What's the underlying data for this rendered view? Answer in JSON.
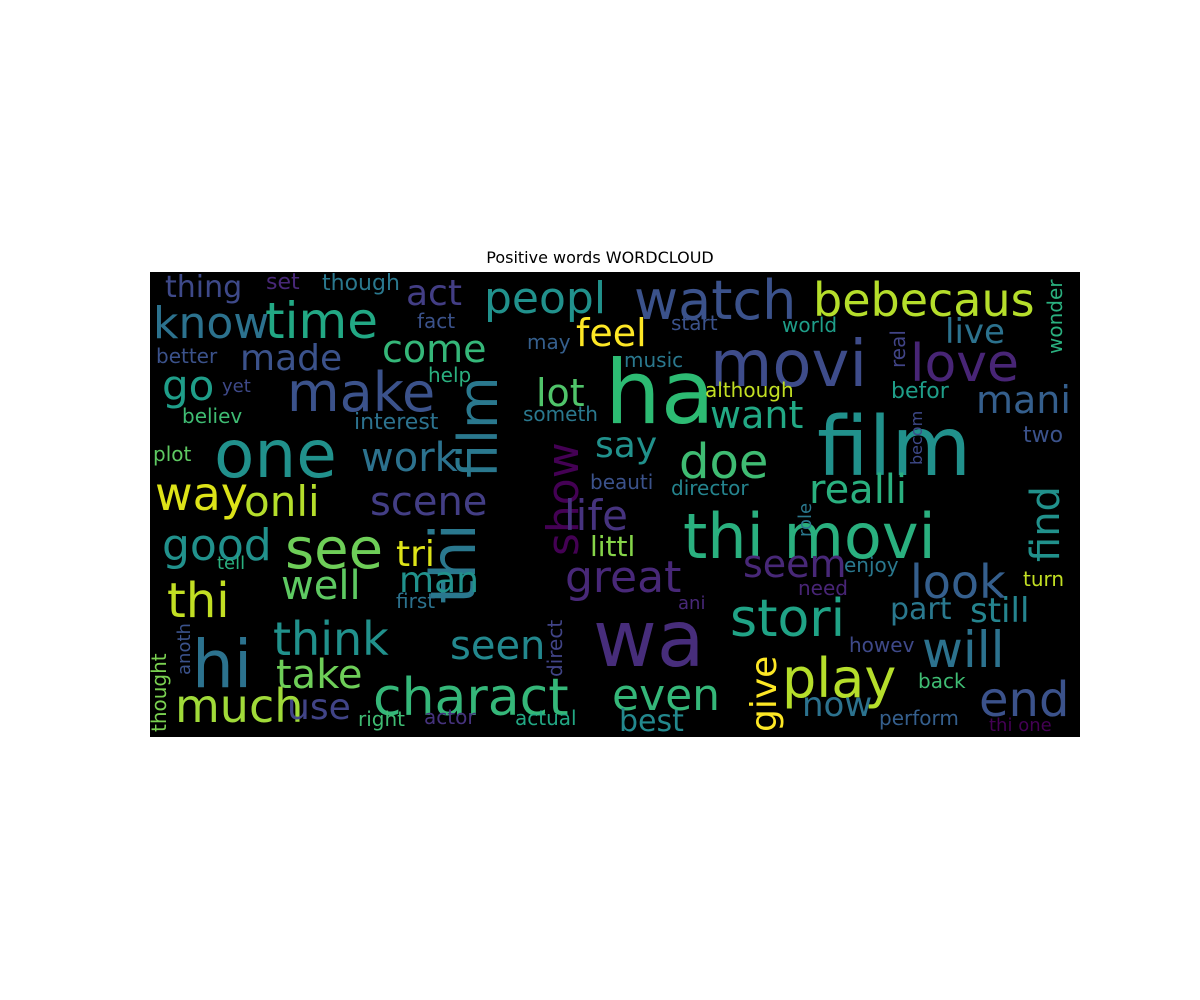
{
  "figure": {
    "title": "Positive words WORDCLOUD"
  },
  "wordcloud": {
    "background": "#000000",
    "words": [
      {
        "text": "ha",
        "color": "#2dbb73"
      },
      {
        "text": "wa",
        "color": "#472d7b"
      },
      {
        "text": "film",
        "color": "#21918c"
      },
      {
        "text": "movi",
        "color": "#3e4c8a"
      },
      {
        "text": "one",
        "color": "#21918c"
      },
      {
        "text": "thi movi",
        "color": "#2ab07f"
      },
      {
        "text": "thi",
        "color": "#2a788e"
      },
      {
        "text": "film",
        "color": "#2a788e"
      },
      {
        "text": "charact",
        "color": "#35b779"
      },
      {
        "text": "watch",
        "color": "#3b528b"
      },
      {
        "text": "make",
        "color": "#3b528b"
      },
      {
        "text": "time",
        "color": "#22a884"
      },
      {
        "text": "bebecaus",
        "color": "#b5de2b"
      },
      {
        "text": "love",
        "color": "#482576"
      },
      {
        "text": "see",
        "color": "#6ece58"
      },
      {
        "text": "hi",
        "color": "#2c728e"
      },
      {
        "text": "stori",
        "color": "#20a386"
      },
      {
        "text": "play",
        "color": "#b5de2b"
      },
      {
        "text": "even",
        "color": "#35b779"
      },
      {
        "text": "show",
        "color": "#440154"
      },
      {
        "text": "peopl",
        "color": "#21918c"
      },
      {
        "text": "know",
        "color": "#2c728e"
      },
      {
        "text": "think",
        "color": "#21918c"
      },
      {
        "text": "great",
        "color": "#482878"
      },
      {
        "text": "much",
        "color": "#a0da39"
      },
      {
        "text": "thi",
        "color": "#c2df23"
      },
      {
        "text": "doe",
        "color": "#3fbc73"
      },
      {
        "text": "will",
        "color": "#2c728e"
      },
      {
        "text": "end",
        "color": "#3b528b"
      },
      {
        "text": "onli",
        "color": "#b5de2b"
      },
      {
        "text": "way",
        "color": "#dde318"
      },
      {
        "text": "life",
        "color": "#46337e"
      },
      {
        "text": "look",
        "color": "#355f8d"
      },
      {
        "text": "realli",
        "color": "#2ab07f"
      },
      {
        "text": "good",
        "color": "#21918c"
      },
      {
        "text": "scene",
        "color": "#433e85"
      },
      {
        "text": "work",
        "color": "#2c728e"
      },
      {
        "text": "made",
        "color": "#3b528b"
      },
      {
        "text": "come",
        "color": "#35b779"
      },
      {
        "text": "go",
        "color": "#1f9e89"
      },
      {
        "text": "well",
        "color": "#5ec962"
      },
      {
        "text": "take",
        "color": "#6ece58"
      },
      {
        "text": "seen",
        "color": "#23888e"
      },
      {
        "text": "act",
        "color": "#433e85"
      },
      {
        "text": "feel",
        "color": "#fde725"
      },
      {
        "text": "lot",
        "color": "#50c46a"
      },
      {
        "text": "want",
        "color": "#22a884"
      },
      {
        "text": "say",
        "color": "#21918c"
      },
      {
        "text": "mani",
        "color": "#355f8d"
      },
      {
        "text": "live",
        "color": "#2c728e"
      },
      {
        "text": "find",
        "color": "#21918c"
      },
      {
        "text": "seem",
        "color": "#482878"
      },
      {
        "text": "give",
        "color": "#fde725"
      },
      {
        "text": "tri",
        "color": "#dde318"
      },
      {
        "text": "man",
        "color": "#21918c"
      },
      {
        "text": "use",
        "color": "#414487"
      },
      {
        "text": "still",
        "color": "#25848e"
      },
      {
        "text": "part",
        "color": "#2a788e"
      },
      {
        "text": "now",
        "color": "#2c728e"
      },
      {
        "text": "best",
        "color": "#23888e"
      },
      {
        "text": "littl",
        "color": "#86d549"
      },
      {
        "text": "thing",
        "color": "#3e4989"
      },
      {
        "text": "set",
        "color": "#482878"
      },
      {
        "text": "though",
        "color": "#2a788e"
      },
      {
        "text": "fact",
        "color": "#3b528b"
      },
      {
        "text": "start",
        "color": "#3b528b"
      },
      {
        "text": "world",
        "color": "#1f9e89"
      },
      {
        "text": "real",
        "color": "#414487"
      },
      {
        "text": "wonder",
        "color": "#2ab07f"
      },
      {
        "text": "may",
        "color": "#355f8d"
      },
      {
        "text": "music",
        "color": "#2a788e"
      },
      {
        "text": "better",
        "color": "#3b528b"
      },
      {
        "text": "yet",
        "color": "#3e4989"
      },
      {
        "text": "help",
        "color": "#2ab07f"
      },
      {
        "text": "although",
        "color": "#c2df23"
      },
      {
        "text": "befor",
        "color": "#1f9e89"
      },
      {
        "text": "believ",
        "color": "#3fbc73"
      },
      {
        "text": "interest",
        "color": "#2c728e"
      },
      {
        "text": "someth",
        "color": "#2a788e"
      },
      {
        "text": "two",
        "color": "#3b528b"
      },
      {
        "text": "becom",
        "color": "#3e4989"
      },
      {
        "text": "plot",
        "color": "#5ec962"
      },
      {
        "text": "beauti",
        "color": "#3b528b"
      },
      {
        "text": "director",
        "color": "#25848e"
      },
      {
        "text": "role",
        "color": "#2a788e"
      },
      {
        "text": "enjoy",
        "color": "#2a788e"
      },
      {
        "text": "turn",
        "color": "#c2df23"
      },
      {
        "text": "tell",
        "color": "#2ab07f"
      },
      {
        "text": "need",
        "color": "#482576"
      },
      {
        "text": "first",
        "color": "#2c728e"
      },
      {
        "text": "ani",
        "color": "#482878"
      },
      {
        "text": "direct",
        "color": "#414487"
      },
      {
        "text": "howev",
        "color": "#3e4989"
      },
      {
        "text": "back",
        "color": "#3fbc73"
      },
      {
        "text": "anoth",
        "color": "#3b528b"
      },
      {
        "text": "thought",
        "color": "#7ad151"
      },
      {
        "text": "right",
        "color": "#3fbc73"
      },
      {
        "text": "actor",
        "color": "#46337e"
      },
      {
        "text": "actual",
        "color": "#22a884"
      },
      {
        "text": "perform",
        "color": "#355f8d"
      },
      {
        "text": "thi one",
        "color": "#440154"
      }
    ]
  }
}
